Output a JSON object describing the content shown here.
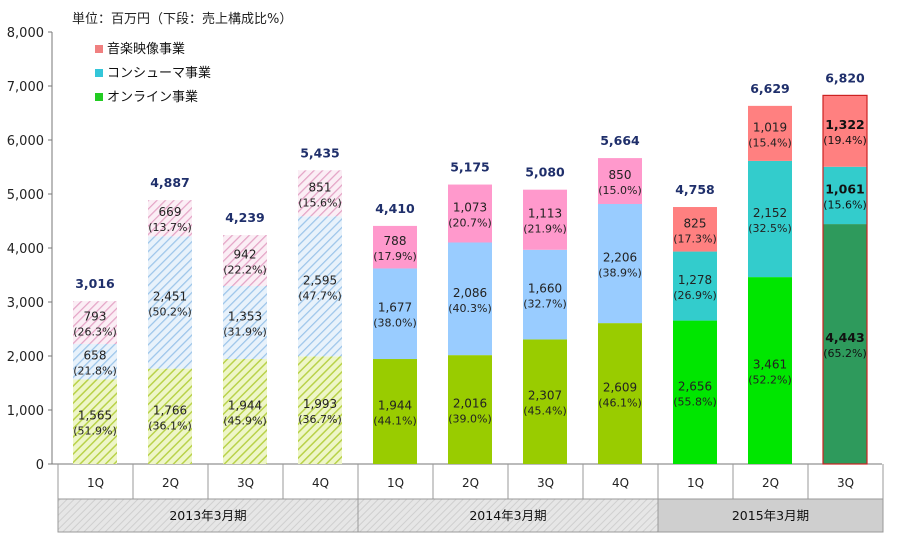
{
  "unit_label": "単位：百万円（下段：売上構成比%）",
  "chart_data": {
    "type": "bar",
    "stacked": true,
    "ylim": [
      0,
      8000
    ],
    "yticks": [
      "0",
      "1,000",
      "2,000",
      "3,000",
      "4,000",
      "5,000",
      "6,000",
      "7,000",
      "8,000"
    ],
    "legend": [
      {
        "name": "音楽映像事業",
        "color": "#f08080"
      },
      {
        "name": "コンシューマ事業",
        "color": "#33c6d9"
      },
      {
        "name": "オンライン事業",
        "color": "#22cc22"
      }
    ],
    "fiscal_years": [
      {
        "label": "2013年3月期",
        "quarters": 4
      },
      {
        "label": "2014年3月期",
        "quarters": 4
      },
      {
        "label": "2015年3月期",
        "quarters": 3
      }
    ],
    "categories": [
      "1Q",
      "2Q",
      "3Q",
      "4Q",
      "1Q",
      "2Q",
      "3Q",
      "4Q",
      "1Q",
      "2Q",
      "3Q"
    ],
    "totals": [
      "3,016",
      "4,887",
      "4,239",
      "5,435",
      "4,410",
      "5,175",
      "5,080",
      "5,664",
      "4,758",
      "6,629",
      "6,820"
    ],
    "series": [
      {
        "name": "オンライン事業",
        "values": [
          1565,
          1766,
          1944,
          1993,
          1944,
          2016,
          2307,
          2609,
          2656,
          3461,
          4443
        ],
        "labels": [
          "1,565",
          "1,766",
          "1,944",
          "1,993",
          "1,944",
          "2,016",
          "2,307",
          "2,609",
          "2,656",
          "3,461",
          "4,443"
        ],
        "pcts": [
          "(51.9%)",
          "(36.1%)",
          "(45.9%)",
          "(36.7%)",
          "(44.1%)",
          "(39.0%)",
          "(45.4%)",
          "(46.1%)",
          "(55.8%)",
          "(52.2%)",
          "(65.2%)"
        ]
      },
      {
        "name": "コンシューマ事業",
        "values": [
          658,
          2451,
          1353,
          2595,
          1677,
          2086,
          1660,
          2206,
          1278,
          2152,
          1061
        ],
        "labels": [
          "658",
          "2,451",
          "1,353",
          "2,595",
          "1,677",
          "2,086",
          "1,660",
          "2,206",
          "1,278",
          "2,152",
          "1,061"
        ],
        "pcts": [
          "(21.8%)",
          "(50.2%)",
          "(31.9%)",
          "(47.7%)",
          "(38.0%)",
          "(40.3%)",
          "(32.7%)",
          "(38.9%)",
          "(26.9%)",
          "(32.5%)",
          "(15.6%)"
        ]
      },
      {
        "name": "音楽映像事業",
        "values": [
          793,
          669,
          942,
          851,
          788,
          1073,
          1113,
          850,
          825,
          1019,
          1322
        ],
        "labels": [
          "793",
          "669",
          "942",
          "851",
          "788",
          "1,073",
          "1,113",
          "850",
          "825",
          "1,019",
          "1,322"
        ],
        "pcts": [
          "(26.3%)",
          "(13.7%)",
          "(22.2%)",
          "(15.6%)",
          "(17.9%)",
          "(20.7%)",
          "(21.9%)",
          "(15.0%)",
          "(17.3%)",
          "(15.4%)",
          "(19.4%)"
        ]
      }
    ],
    "styles": {
      "fy2013": {
        "online": "#c6dc5a",
        "consumer": "#a8d0f0",
        "music": "#e8a8cc",
        "hatched": true
      },
      "fy2014": {
        "online": "#99cc00",
        "consumer": "#99ccff",
        "music": "#ff99cc"
      },
      "fy2015": {
        "online": "#00e600",
        "consumer": "#33cccc",
        "music": "#ff8080"
      },
      "highlight": {
        "online": "#2e9a5c",
        "consumer": "#33cccc",
        "music": "#ff8080",
        "border": "#cc2222"
      }
    }
  }
}
